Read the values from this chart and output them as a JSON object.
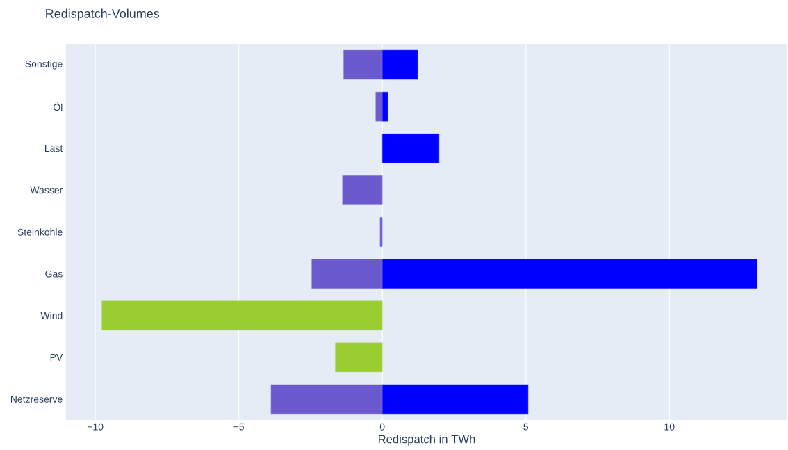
{
  "chart_data": {
    "type": "bar",
    "orientation": "horizontal",
    "title": "Redispatch-Volumes",
    "xlabel": "Redispatch in TWh",
    "categories": [
      "Sonstige",
      "Öl",
      "Last",
      "Wasser",
      "Steinkohle",
      "Gas",
      "Wind",
      "PV",
      "Netzreserve"
    ],
    "series": [
      {
        "color": "#6a5acd",
        "values": [
          -1.35,
          -0.23,
          null,
          -1.39,
          -0.08,
          -2.46,
          null,
          null,
          -3.88
        ]
      },
      {
        "color": "#9acd32",
        "values": [
          null,
          null,
          null,
          null,
          null,
          null,
          -9.77,
          -1.64,
          null
        ]
      },
      {
        "color": "#0000ff",
        "values": [
          1.23,
          0.19,
          1.98,
          null,
          null,
          13.06,
          null,
          null,
          5.08
        ]
      }
    ],
    "xlim": [
      -11.02,
      14.11
    ],
    "xticks": [
      {
        "value": -10,
        "label": "−10"
      },
      {
        "value": -5,
        "label": "−5"
      },
      0,
      5,
      10
    ],
    "grid": "x"
  }
}
